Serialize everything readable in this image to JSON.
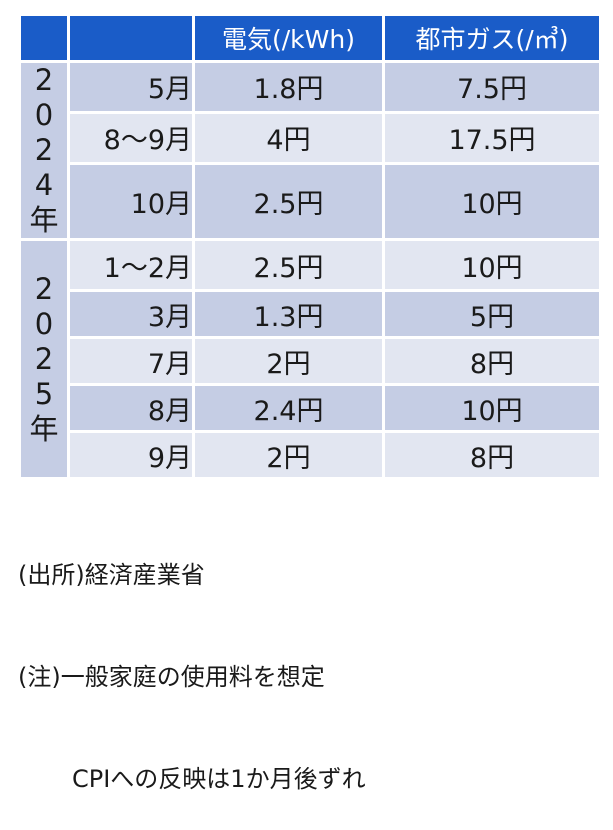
{
  "header": {
    "col1": "",
    "col2": "",
    "electricity": "電気(/kWh)",
    "gas": "都市ガス(/㎥)"
  },
  "years": [
    {
      "label_chars": [
        "2",
        "0",
        "2",
        "4",
        "年"
      ],
      "rows": [
        {
          "month": "5月",
          "electricity": "1.8円",
          "gas": "7.5円"
        },
        {
          "month": "8〜9月",
          "electricity": "4円",
          "gas": "17.5円"
        },
        {
          "month": "10月",
          "electricity": "2.5円",
          "gas": "10円"
        }
      ]
    },
    {
      "label_chars": [
        "2",
        "0",
        "2",
        "5",
        "年"
      ],
      "rows": [
        {
          "month": "1〜2月",
          "electricity": "2.5円",
          "gas": "10円"
        },
        {
          "month": "3月",
          "electricity": "1.3円",
          "gas": "5円"
        },
        {
          "month": "7月",
          "electricity": "2円",
          "gas": "8円"
        },
        {
          "month": "8月",
          "electricity": "2.4円",
          "gas": "10円"
        },
        {
          "month": "9月",
          "electricity": "2円",
          "gas": "8円"
        }
      ]
    }
  ],
  "notes": {
    "source": "(出所)経済産業省",
    "note1": "(注)一般家庭の使用料を想定",
    "note2": "CPIへの反映は1か月後ずれ"
  }
}
